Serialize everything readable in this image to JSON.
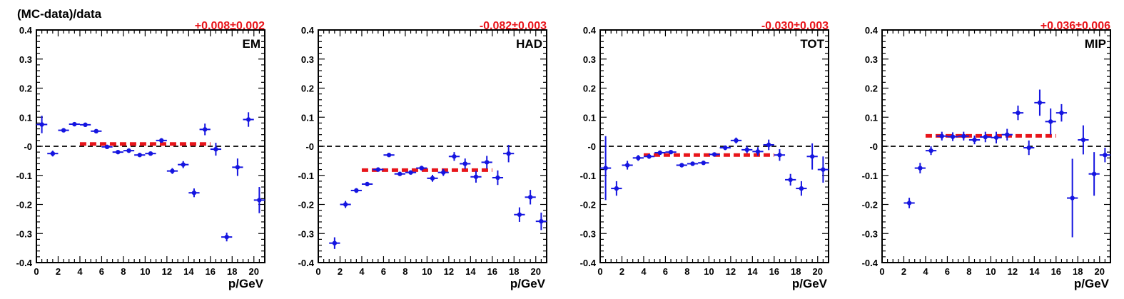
{
  "figure": {
    "ylabel": "(MC-data)/data",
    "xlabel": "p/GeV"
  },
  "colors": {
    "points": "#1515e0",
    "fit": "#e8151b",
    "zero_line": "#000000"
  },
  "chart_data": [
    {
      "type": "scatter",
      "panel_label": "EM",
      "fit_text": "+0.008±0.002",
      "xlim": [
        0,
        21
      ],
      "ylim": [
        -0.4,
        0.4
      ],
      "xticks": [
        0,
        2,
        4,
        6,
        8,
        10,
        12,
        14,
        16,
        18,
        20
      ],
      "xtick_labels": [
        "0",
        "2",
        "4",
        "6",
        "8",
        "10",
        "12",
        "14",
        "16",
        "18",
        "20"
      ],
      "yticks": [
        -0.4,
        -0.3,
        -0.2,
        -0.1,
        0,
        0.1,
        0.2,
        0.3,
        0.4
      ],
      "ytick_labels": [
        "-0.4",
        "-0.3",
        "-0.2",
        "-0.1",
        "-0",
        "0.1",
        "0.2",
        "0.3",
        "0.4"
      ],
      "fit": {
        "value": 0.008,
        "x_range": [
          4,
          16
        ]
      },
      "points": [
        {
          "x": 0.5,
          "y": 0.075,
          "yerr": 0.03
        },
        {
          "x": 1.5,
          "y": -0.025,
          "yerr": 0.01
        },
        {
          "x": 2.5,
          "y": 0.055,
          "yerr": 0.005
        },
        {
          "x": 3.5,
          "y": 0.076,
          "yerr": 0.004
        },
        {
          "x": 4.5,
          "y": 0.074,
          "yerr": 0.004
        },
        {
          "x": 5.5,
          "y": 0.052,
          "yerr": 0.004
        },
        {
          "x": 6.5,
          "y": -0.002,
          "yerr": 0.004
        },
        {
          "x": 7.5,
          "y": -0.02,
          "yerr": 0.004
        },
        {
          "x": 8.5,
          "y": -0.015,
          "yerr": 0.004
        },
        {
          "x": 9.5,
          "y": -0.03,
          "yerr": 0.005
        },
        {
          "x": 10.5,
          "y": -0.025,
          "yerr": 0.005
        },
        {
          "x": 11.5,
          "y": 0.02,
          "yerr": 0.008
        },
        {
          "x": 12.5,
          "y": -0.085,
          "yerr": 0.01
        },
        {
          "x": 13.5,
          "y": -0.063,
          "yerr": 0.012
        },
        {
          "x": 14.5,
          "y": -0.16,
          "yerr": 0.015
        },
        {
          "x": 15.5,
          "y": 0.058,
          "yerr": 0.02
        },
        {
          "x": 16.5,
          "y": -0.01,
          "yerr": 0.022
        },
        {
          "x": 17.5,
          "y": -0.312,
          "yerr": 0.015
        },
        {
          "x": 18.5,
          "y": -0.072,
          "yerr": 0.03
        },
        {
          "x": 19.5,
          "y": 0.092,
          "yerr": 0.025
        },
        {
          "x": 20.5,
          "y": -0.185,
          "yerr": 0.045
        }
      ]
    },
    {
      "type": "scatter",
      "panel_label": "HAD",
      "fit_text": "-0.082±0.003",
      "xlim": [
        0,
        21
      ],
      "ylim": [
        -0.4,
        0.4
      ],
      "xticks": [
        0,
        2,
        4,
        6,
        8,
        10,
        12,
        14,
        16,
        18,
        20
      ],
      "xtick_labels": [
        "0",
        "2",
        "4",
        "6",
        "8",
        "10",
        "12",
        "14",
        "16",
        "18",
        "20"
      ],
      "yticks": [
        -0.4,
        -0.3,
        -0.2,
        -0.1,
        0,
        0.1,
        0.2,
        0.3,
        0.4
      ],
      "ytick_labels": [
        "-0.4",
        "-0.3",
        "-0.2",
        "-0.1",
        "-0",
        "0.1",
        "0.2",
        "0.3",
        "0.4"
      ],
      "fit": {
        "value": -0.082,
        "x_range": [
          4,
          16
        ]
      },
      "points": [
        {
          "x": 1.5,
          "y": -0.333,
          "yerr": 0.02
        },
        {
          "x": 2.5,
          "y": -0.2,
          "yerr": 0.012
        },
        {
          "x": 3.5,
          "y": -0.152,
          "yerr": 0.008
        },
        {
          "x": 4.5,
          "y": -0.13,
          "yerr": 0.006
        },
        {
          "x": 5.5,
          "y": -0.08,
          "yerr": 0.005
        },
        {
          "x": 6.5,
          "y": -0.03,
          "yerr": 0.005
        },
        {
          "x": 7.5,
          "y": -0.095,
          "yerr": 0.006
        },
        {
          "x": 8.5,
          "y": -0.09,
          "yerr": 0.006
        },
        {
          "x": 9.5,
          "y": -0.075,
          "yerr": 0.008
        },
        {
          "x": 10.5,
          "y": -0.11,
          "yerr": 0.012
        },
        {
          "x": 11.5,
          "y": -0.09,
          "yerr": 0.012
        },
        {
          "x": 12.5,
          "y": -0.035,
          "yerr": 0.015
        },
        {
          "x": 13.5,
          "y": -0.06,
          "yerr": 0.018
        },
        {
          "x": 14.5,
          "y": -0.105,
          "yerr": 0.02
        },
        {
          "x": 15.5,
          "y": -0.055,
          "yerr": 0.022
        },
        {
          "x": 16.5,
          "y": -0.108,
          "yerr": 0.025
        },
        {
          "x": 17.5,
          "y": -0.025,
          "yerr": 0.03
        },
        {
          "x": 18.5,
          "y": -0.235,
          "yerr": 0.025
        },
        {
          "x": 19.5,
          "y": -0.175,
          "yerr": 0.025
        },
        {
          "x": 20.5,
          "y": -0.258,
          "yerr": 0.03
        }
      ]
    },
    {
      "type": "scatter",
      "panel_label": "TOT",
      "fit_text": "-0.030±0.003",
      "xlim": [
        0,
        21
      ],
      "ylim": [
        -0.4,
        0.4
      ],
      "xticks": [
        0,
        2,
        4,
        6,
        8,
        10,
        12,
        14,
        16,
        18,
        20
      ],
      "xtick_labels": [
        "0",
        "2",
        "4",
        "6",
        "8",
        "10",
        "12",
        "14",
        "16",
        "18",
        "20"
      ],
      "yticks": [
        -0.4,
        -0.3,
        -0.2,
        -0.1,
        0,
        0.1,
        0.2,
        0.3,
        0.4
      ],
      "ytick_labels": [
        "-0.4",
        "-0.3",
        "-0.2",
        "-0.1",
        "-0",
        "0.1",
        "0.2",
        "0.3",
        "0.4"
      ],
      "fit": {
        "value": -0.03,
        "x_range": [
          4,
          16
        ]
      },
      "points": [
        {
          "x": 0.5,
          "y": -0.075,
          "yerr": 0.11
        },
        {
          "x": 1.5,
          "y": -0.145,
          "yerr": 0.025
        },
        {
          "x": 2.5,
          "y": -0.065,
          "yerr": 0.015
        },
        {
          "x": 3.5,
          "y": -0.04,
          "yerr": 0.01
        },
        {
          "x": 4.5,
          "y": -0.035,
          "yerr": 0.008
        },
        {
          "x": 5.5,
          "y": -0.022,
          "yerr": 0.006
        },
        {
          "x": 6.5,
          "y": -0.02,
          "yerr": 0.005
        },
        {
          "x": 7.5,
          "y": -0.065,
          "yerr": 0.005
        },
        {
          "x": 8.5,
          "y": -0.06,
          "yerr": 0.005
        },
        {
          "x": 9.5,
          "y": -0.057,
          "yerr": 0.006
        },
        {
          "x": 10.5,
          "y": -0.028,
          "yerr": 0.006
        },
        {
          "x": 11.5,
          "y": -0.005,
          "yerr": 0.008
        },
        {
          "x": 12.5,
          "y": 0.02,
          "yerr": 0.01
        },
        {
          "x": 13.5,
          "y": -0.012,
          "yerr": 0.012
        },
        {
          "x": 14.5,
          "y": -0.018,
          "yerr": 0.015
        },
        {
          "x": 15.5,
          "y": 0.005,
          "yerr": 0.018
        },
        {
          "x": 16.5,
          "y": -0.03,
          "yerr": 0.02
        },
        {
          "x": 17.5,
          "y": -0.115,
          "yerr": 0.02
        },
        {
          "x": 18.5,
          "y": -0.145,
          "yerr": 0.025
        },
        {
          "x": 19.5,
          "y": -0.035,
          "yerr": 0.045
        },
        {
          "x": 20.5,
          "y": -0.08,
          "yerr": 0.045
        }
      ]
    },
    {
      "type": "scatter",
      "panel_label": "MIP",
      "fit_text": "+0.036±0.006",
      "xlim": [
        0,
        21
      ],
      "ylim": [
        -0.4,
        0.4
      ],
      "xticks": [
        0,
        2,
        4,
        6,
        8,
        10,
        12,
        14,
        16,
        18,
        20
      ],
      "xtick_labels": [
        "0",
        "2",
        "4",
        "6",
        "8",
        "10",
        "12",
        "14",
        "16",
        "18",
        "20"
      ],
      "yticks": [
        -0.4,
        -0.3,
        -0.2,
        -0.1,
        0,
        0.1,
        0.2,
        0.3,
        0.4
      ],
      "ytick_labels": [
        "-0.4",
        "-0.3",
        "-0.2",
        "-0.1",
        "-0",
        "0.1",
        "0.2",
        "0.3",
        "0.4"
      ],
      "fit": {
        "value": 0.036,
        "x_range": [
          4,
          16
        ]
      },
      "points": [
        {
          "x": 2.5,
          "y": -0.195,
          "yerr": 0.018
        },
        {
          "x": 3.5,
          "y": -0.075,
          "yerr": 0.018
        },
        {
          "x": 4.5,
          "y": -0.015,
          "yerr": 0.015
        },
        {
          "x": 5.5,
          "y": 0.035,
          "yerr": 0.015
        },
        {
          "x": 6.5,
          "y": 0.033,
          "yerr": 0.015
        },
        {
          "x": 7.5,
          "y": 0.035,
          "yerr": 0.015
        },
        {
          "x": 8.5,
          "y": 0.022,
          "yerr": 0.015
        },
        {
          "x": 9.5,
          "y": 0.032,
          "yerr": 0.018
        },
        {
          "x": 10.5,
          "y": 0.03,
          "yerr": 0.02
        },
        {
          "x": 11.5,
          "y": 0.04,
          "yerr": 0.02
        },
        {
          "x": 12.5,
          "y": 0.115,
          "yerr": 0.025
        },
        {
          "x": 13.5,
          "y": -0.005,
          "yerr": 0.025
        },
        {
          "x": 14.5,
          "y": 0.15,
          "yerr": 0.045
        },
        {
          "x": 15.5,
          "y": 0.085,
          "yerr": 0.045
        },
        {
          "x": 16.5,
          "y": 0.115,
          "yerr": 0.03
        },
        {
          "x": 17.5,
          "y": -0.178,
          "yerr": 0.135
        },
        {
          "x": 18.5,
          "y": 0.022,
          "yerr": 0.05
        },
        {
          "x": 19.5,
          "y": -0.095,
          "yerr": 0.075
        },
        {
          "x": 20.5,
          "y": -0.03,
          "yerr": 0.025
        }
      ]
    }
  ]
}
